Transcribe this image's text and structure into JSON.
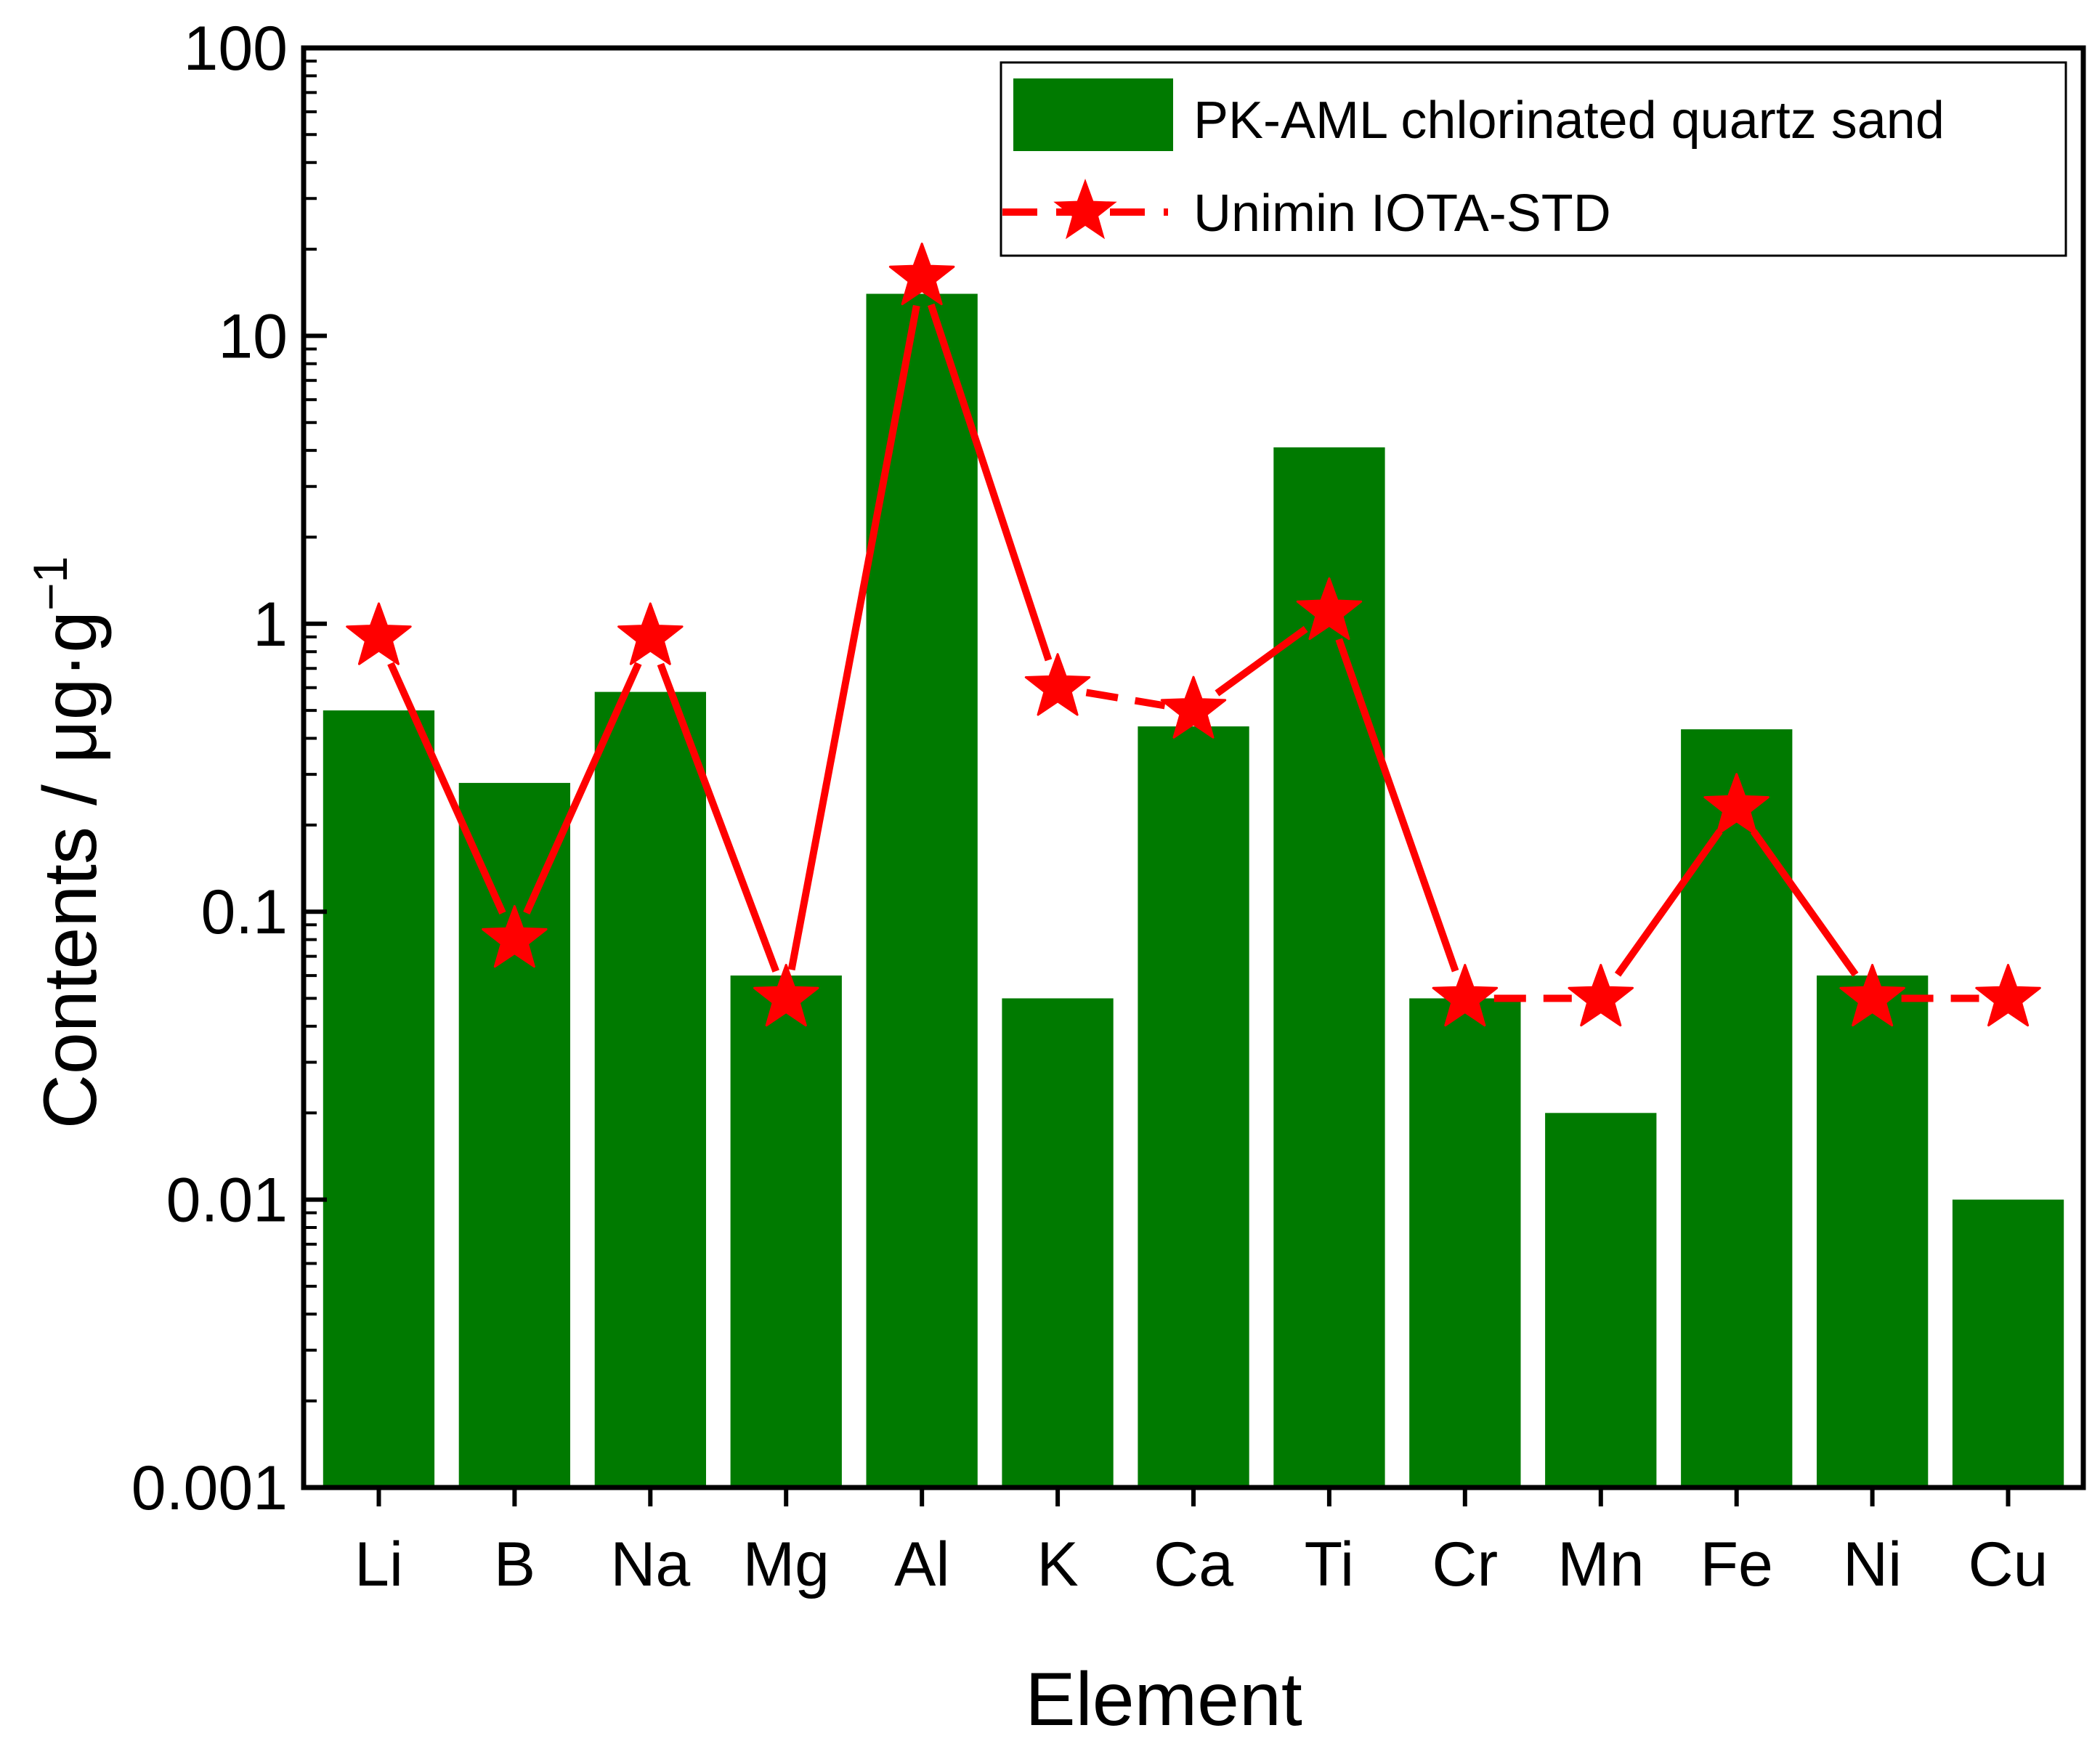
{
  "chart_data": {
    "type": "bar",
    "title": "",
    "xlabel": "Element",
    "ylabel": "Contents / μg·g",
    "ylabel_superscript": "−1",
    "yscale": "log",
    "ylim": [
      0.001,
      100
    ],
    "yticks": [
      {
        "value": 0.001,
        "label": "0.001"
      },
      {
        "value": 0.01,
        "label": "0.01"
      },
      {
        "value": 0.1,
        "label": "0.1"
      },
      {
        "value": 1,
        "label": "1"
      },
      {
        "value": 10,
        "label": "10"
      },
      {
        "value": 100,
        "label": "100"
      }
    ],
    "categories": [
      "Li",
      "B",
      "Na",
      "Mg",
      "Al",
      "K",
      "Ca",
      "Ti",
      "Cr",
      "Mn",
      "Fe",
      "Ni",
      "Cu"
    ],
    "series": [
      {
        "name": "PK-AML chlorinated quartz sand",
        "kind": "bar",
        "color": "#007a00",
        "values": [
          0.5,
          0.28,
          0.58,
          0.06,
          14,
          0.05,
          0.44,
          4.1,
          0.05,
          0.02,
          0.43,
          0.06,
          0.01
        ]
      },
      {
        "name": "Unimin IOTA-STD",
        "kind": "line-star",
        "color": "#ff0000",
        "values": [
          0.9,
          0.08,
          0.9,
          0.05,
          16,
          0.6,
          0.5,
          1.1,
          0.05,
          0.05,
          0.23,
          0.05,
          0.05
        ],
        "dashed_segments": [
          5,
          8,
          11
        ]
      }
    ],
    "legend_position": "top-right"
  }
}
